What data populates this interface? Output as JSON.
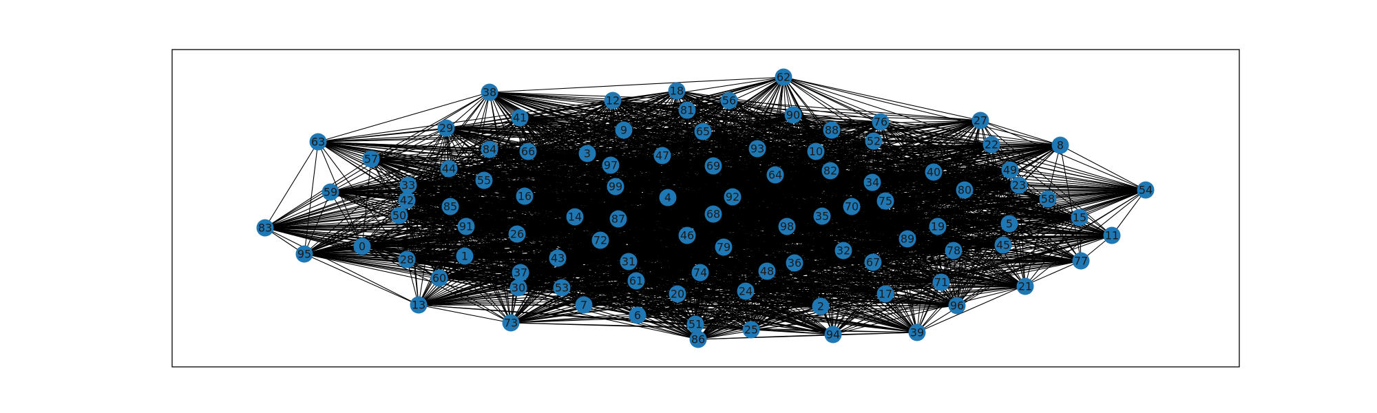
{
  "graph": {
    "node_color": "#1f77b4",
    "edge_color": "#000000",
    "frame_color": "#000000",
    "node_ids": [
      0,
      1,
      2,
      3,
      4,
      5,
      6,
      7,
      8,
      9,
      10,
      11,
      12,
      13,
      14,
      15,
      16,
      17,
      18,
      19,
      20,
      21,
      22,
      23,
      24,
      25,
      26,
      27,
      28,
      29,
      30,
      31,
      32,
      33,
      34,
      35,
      36,
      37,
      38,
      39,
      40,
      41,
      42,
      43,
      44,
      45,
      46,
      47,
      48,
      49,
      50,
      51,
      52,
      53,
      54,
      55,
      56,
      57,
      58,
      59,
      60,
      61,
      62,
      63,
      64,
      65,
      66,
      67,
      68,
      69,
      70,
      71,
      72,
      73,
      74,
      75,
      76,
      77,
      78,
      79,
      80,
      81,
      82,
      83,
      84,
      85,
      86,
      87,
      88,
      89,
      90,
      91,
      92,
      93,
      94,
      95,
      96,
      97,
      98,
      99
    ],
    "labels": [
      "0",
      "1",
      "2",
      "3",
      "4",
      "5",
      "6",
      "7",
      "8",
      "9",
      "10",
      "11",
      "12",
      "13",
      "14",
      "15",
      "16",
      "17",
      "18",
      "19",
      "20",
      "21",
      "22",
      "23",
      "24",
      "25",
      "26",
      "27",
      "28",
      "29",
      "30",
      "31",
      "32",
      "33",
      "34",
      "35",
      "36",
      "37",
      "38",
      "39",
      "40",
      "41",
      "42",
      "43",
      "44",
      "45",
      "46",
      "47",
      "48",
      "49",
      "50",
      "51",
      "52",
      "53",
      "54",
      "55",
      "56",
      "57",
      "58",
      "59",
      "60",
      "61",
      "62",
      "63",
      "64",
      "65",
      "66",
      "67",
      "68",
      "69",
      "70",
      "71",
      "72",
      "73",
      "74",
      "75",
      "76",
      "77",
      "78",
      "79",
      "80",
      "81",
      "82",
      "83",
      "84",
      "85",
      "86",
      "87",
      "88",
      "89",
      "90",
      "91",
      "92",
      "93",
      "94",
      "95",
      "96",
      "97",
      "98",
      "99"
    ],
    "edge_density": 0.5
  }
}
